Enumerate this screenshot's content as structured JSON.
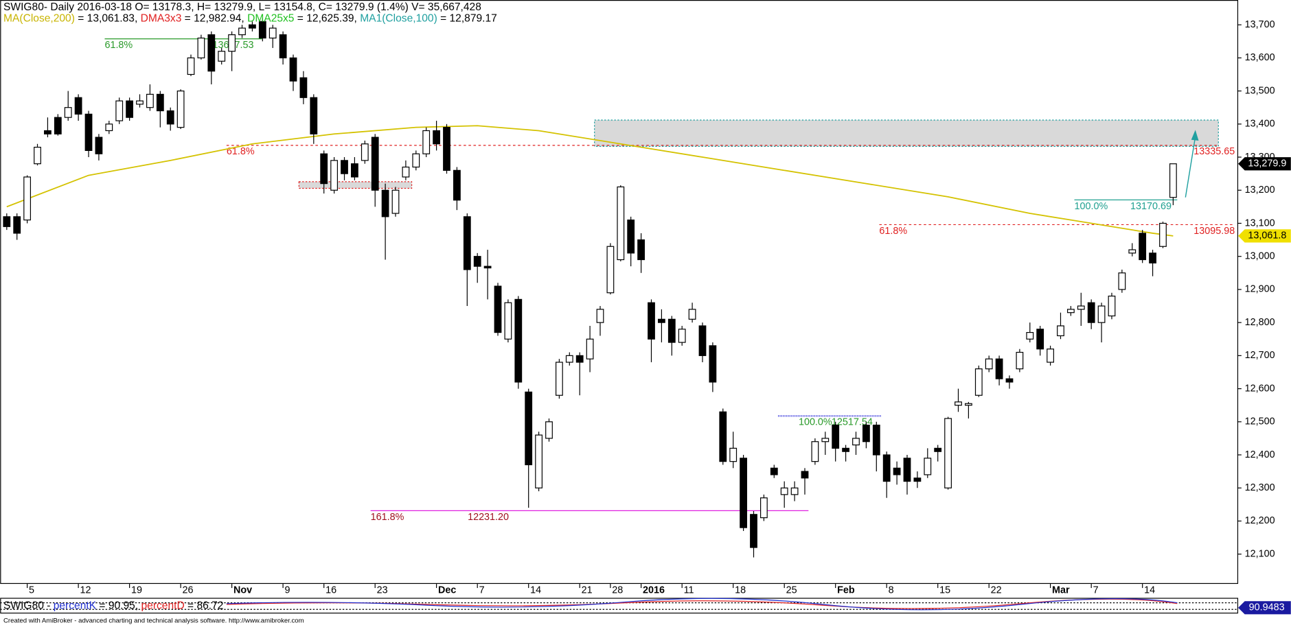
{
  "chart_data": {
    "type": "candlestick",
    "header": "SWIG80- Daily 2016-03-18 O= 13178.3, H= 13279.9, L= 13154.8, C= 13279.9 (1.4%) V= 35,667,428",
    "indicators": [
      {
        "name": "MA(Close,200)",
        "text": " = 13,061.83, ",
        "color": "#c8b400"
      },
      {
        "name": "DMA3x3",
        "text": " = 12,982.94, ",
        "color": "#e02020"
      },
      {
        "name": "DMA25x5",
        "text": " = 12,625.39, ",
        "color": "#20c020"
      },
      {
        "name": "MA1(Close,100)",
        "text": " = 12,879.17",
        "color": "#20a0a0"
      }
    ],
    "categories": [
      null,
      null,
      "5",
      null,
      null,
      null,
      null,
      "12",
      null,
      null,
      null,
      null,
      "19",
      null,
      null,
      null,
      null,
      "26",
      null,
      null,
      null,
      null,
      "Nov",
      null,
      null,
      null,
      null,
      "9",
      null,
      null,
      null,
      "16",
      null,
      null,
      null,
      null,
      "23",
      null,
      null,
      null,
      null,
      null,
      "Dec",
      null,
      null,
      null,
      "7",
      null,
      null,
      null,
      null,
      "14",
      null,
      null,
      null,
      null,
      "21",
      null,
      null,
      "28",
      null,
      null,
      "2016",
      null,
      null,
      null,
      "11",
      null,
      null,
      null,
      null,
      "18",
      null,
      null,
      null,
      null,
      "25",
      null,
      null,
      null,
      null,
      "Feb",
      null,
      null,
      null,
      null,
      "8",
      null,
      null,
      null,
      null,
      "15",
      null,
      null,
      null,
      null,
      "22",
      null,
      null,
      null,
      null,
      null,
      "Mar",
      null,
      null,
      null,
      "7",
      null,
      null,
      null,
      null,
      "14",
      null,
      null,
      null
    ],
    "open": [
      13120,
      13120,
      13110,
      13280,
      13380,
      13420,
      13420,
      13480,
      13430,
      13360,
      13380,
      13410,
      13470,
      13460,
      13450,
      13490,
      13440,
      13390,
      13550,
      13600,
      13670,
      13590,
      13620,
      13670,
      13700,
      13710,
      13660,
      13670,
      13600,
      13540,
      13480,
      13310,
      13200,
      13290,
      13280,
      13290,
      13360,
      13200,
      13130,
      13240,
      13270,
      13310,
      13380,
      13390,
      13260,
      13120,
      13000,
      12970,
      12910,
      12750,
      12870,
      12590,
      12300,
      12450,
      12580,
      12680,
      12700,
      12690,
      12800,
      12890,
      12990,
      13110,
      13050,
      12860,
      12810,
      12810,
      12740,
      12810,
      12790,
      12730,
      12530,
      12380,
      12390,
      12220,
      12210,
      12360,
      12280,
      12280,
      12350,
      12380,
      12440,
      12490,
      12420,
      12430,
      12490,
      12490,
      12400,
      12360,
      12390,
      12330,
      12340,
      12420,
      12300,
      12550,
      12550,
      12580,
      12660,
      12690,
      12630,
      12660,
      12750,
      12780,
      12680,
      12760,
      12830,
      12840,
      12860,
      12800,
      12820,
      12900,
      13010,
      13070,
      13010,
      13030,
      13178.3
    ],
    "high": [
      13130,
      13130,
      13245,
      13340,
      13420,
      13430,
      13500,
      13490,
      13440,
      13370,
      13410,
      13480,
      13480,
      13490,
      13520,
      13500,
      13450,
      13505,
      13610,
      13670,
      13680,
      13630,
      13680,
      13700,
      13710,
      13720,
      13700,
      13680,
      13610,
      13560,
      13490,
      13320,
      13300,
      13300,
      13300,
      13350,
      13370,
      13220,
      13210,
      13290,
      13320,
      13390,
      13410,
      13400,
      13270,
      13130,
      13010,
      13020,
      12920,
      12870,
      12880,
      12600,
      12470,
      12510,
      12690,
      12710,
      12710,
      12790,
      12850,
      13040,
      13215,
      13120,
      13070,
      12870,
      12840,
      12820,
      12790,
      12860,
      12800,
      12740,
      12540,
      12470,
      12400,
      12230,
      12280,
      12370,
      12320,
      12320,
      12360,
      12450,
      12470,
      12500,
      12430,
      12470,
      12500,
      12500,
      12410,
      12380,
      12400,
      12350,
      12420,
      12430,
      12515,
      12600,
      12560,
      12670,
      12700,
      12700,
      12640,
      12720,
      12800,
      12790,
      12730,
      12830,
      12850,
      12890,
      12870,
      12860,
      12890,
      12960,
      13040,
      13080,
      13020,
      13105,
      13279.9
    ],
    "low": [
      13080,
      13050,
      13100,
      13275,
      13360,
      13365,
      13410,
      13410,
      13300,
      13290,
      13370,
      13400,
      13410,
      13450,
      13440,
      13390,
      13380,
      13385,
      13545,
      13595,
      13520,
      13580,
      13560,
      13660,
      13680,
      13650,
      13630,
      13580,
      13500,
      13460,
      13340,
      13190,
      13190,
      13230,
      13230,
      13280,
      13150,
      12990,
      13120,
      13230,
      13260,
      13300,
      13320,
      13250,
      13140,
      12850,
      12920,
      12870,
      12760,
      12740,
      12600,
      12240,
      12290,
      12440,
      12570,
      12670,
      12580,
      12650,
      12760,
      12885,
      12985,
      12970,
      12950,
      12680,
      12740,
      12700,
      12730,
      12800,
      12680,
      12590,
      12370,
      12360,
      12170,
      12090,
      12200,
      12330,
      12240,
      12260,
      12280,
      12370,
      12400,
      12380,
      12380,
      12400,
      12420,
      12350,
      12270,
      12310,
      12280,
      12300,
      12330,
      12380,
      12295,
      12530,
      12510,
      12575,
      12650,
      12610,
      12600,
      12650,
      12740,
      12700,
      12670,
      12750,
      12820,
      12790,
      12780,
      12740,
      12810,
      12890,
      13000,
      12980,
      12940,
      13025,
      13154.8
    ],
    "close": [
      13090,
      13070,
      13240,
      13330,
      13370,
      13370,
      13450,
      13430,
      13320,
      13310,
      13400,
      13470,
      13420,
      13470,
      13490,
      13440,
      13400,
      13500,
      13600,
      13660,
      13560,
      13620,
      13670,
      13690,
      13690,
      13660,
      13690,
      13600,
      13530,
      13480,
      13370,
      13220,
      13290,
      13250,
      13240,
      13340,
      13200,
      13120,
      13200,
      13270,
      13310,
      13380,
      13340,
      13260,
      13170,
      12960,
      12970,
      12965,
      12770,
      12860,
      12620,
      12370,
      12460,
      12500,
      12680,
      12700,
      12680,
      12750,
      12840,
      13030,
      13210,
      13010,
      12990,
      12750,
      12800,
      12740,
      12780,
      12840,
      12700,
      12620,
      12380,
      12420,
      12180,
      12120,
      12270,
      12340,
      12300,
      12300,
      12330,
      12440,
      12450,
      12420,
      12410,
      12450,
      12440,
      12400,
      12320,
      12340,
      12320,
      12320,
      12390,
      12410,
      12510,
      12560,
      12555,
      12660,
      12690,
      12630,
      12620,
      12710,
      12770,
      12720,
      12720,
      12790,
      12840,
      12850,
      12800,
      12850,
      12880,
      12950,
      13020,
      12990,
      12980,
      13100,
      13279.9
    ],
    "ma200": {
      "color": "#d4c200",
      "x": [
        0,
        8,
        16,
        24,
        32,
        40,
        46,
        52,
        60,
        68,
        76,
        84,
        92,
        100,
        104,
        112,
        114
      ],
      "values": [
        13150,
        13245,
        13290,
        13340,
        13370,
        13390,
        13395,
        13380,
        13340,
        13300,
        13260,
        13220,
        13180,
        13130,
        13110,
        13070,
        13061.83
      ]
    },
    "levels": [
      {
        "pct": "61.8%",
        "value": 13657.53,
        "value_label": "13657.53",
        "color": "#2a9a2a",
        "line_color": "#2a9a2a"
      },
      {
        "pct": "61.8%",
        "value": 13335.65,
        "value_label": "13335.65",
        "color": "#e02020",
        "line_color": "#e02020"
      },
      {
        "pct": "61.8%",
        "value": 13095.98,
        "value_label": "13095.98",
        "color": "#e02020",
        "line_color": "#e02020"
      },
      {
        "pct": "100.0%",
        "value": 13170.69,
        "value_label": "13170.69",
        "color": "#20a090",
        "line_color": "#20a090"
      },
      {
        "pct": "100.0%",
        "value": 12517.54,
        "value_label": "12517.54",
        "color": "#2a9a2a",
        "line_color": "#5050e0"
      },
      {
        "pct": "161.8%",
        "value": 12231.2,
        "value_label": "12231.20",
        "color": "#a01020",
        "line_color": "#e020e0"
      }
    ],
    "last_price_label": "13,279.9",
    "ma_price_label": "13,061.8",
    "ylim": [
      12010,
      13775
    ],
    "yticks": [
      {
        "value": 12100,
        "label": "12,100"
      },
      {
        "value": 12200,
        "label": "12,200"
      },
      {
        "value": 12300,
        "label": "12,300"
      },
      {
        "value": 12400,
        "label": "12,400"
      },
      {
        "value": 12500,
        "label": "12,500"
      },
      {
        "value": 12600,
        "label": "12,600"
      },
      {
        "value": 12700,
        "label": "12,700"
      },
      {
        "value": 12800,
        "label": "12,800"
      },
      {
        "value": 12900,
        "label": "12,900"
      },
      {
        "value": 13000,
        "label": "13,000"
      },
      {
        "value": 13100,
        "label": "13,100"
      },
      {
        "value": 13200,
        "label": "13,200"
      },
      {
        "value": 13300,
        "label": "13,300"
      },
      {
        "value": 13400,
        "label": "13,400"
      },
      {
        "value": 13500,
        "label": "13,500"
      },
      {
        "value": 13600,
        "label": "13,600"
      },
      {
        "value": 13700,
        "label": "13,700"
      }
    ],
    "oscillator": {
      "name": "SWIG80 - ",
      "k_name": "percentK",
      "k_text": " = 90.95, ",
      "d_name": "percentD",
      "d_text": " = 86.72",
      "last_label": "90.9483"
    },
    "footer": "Created with AmiBroker - advanced charting and technical analysis software. http://www.amibroker.com"
  }
}
